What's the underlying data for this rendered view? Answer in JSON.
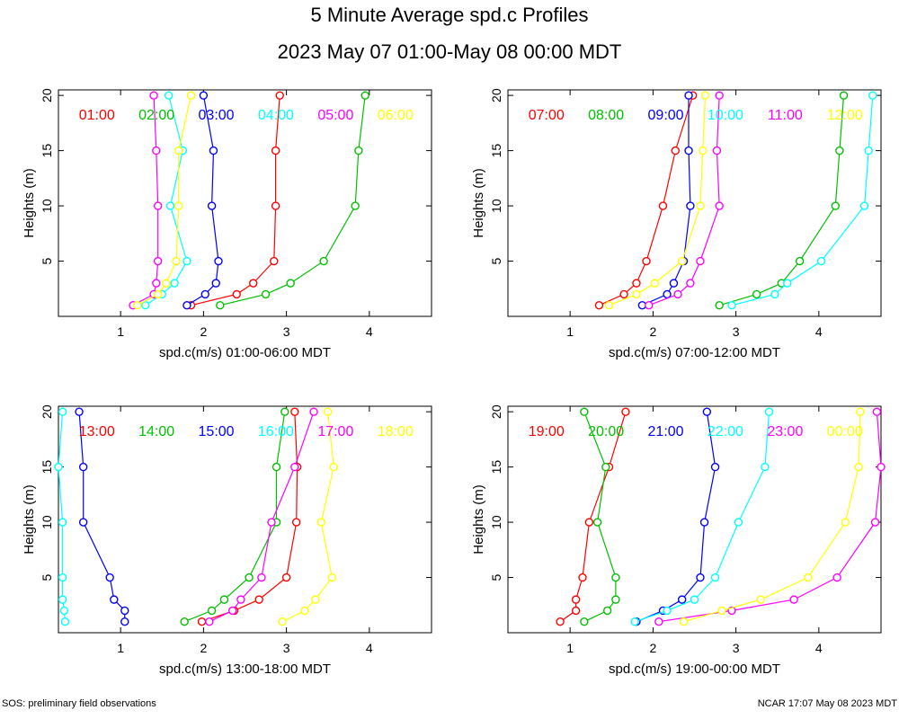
{
  "title": "5 Minute Average spd.c Profiles",
  "subtitle": "2023 May 07 01:00-May 08 00:00 MDT",
  "footer_left": "SOS: preliminary field observations",
  "footer_right": "NCAR 17:07 May 08 2023 MDT",
  "colors": [
    "#ff0000",
    "#00c000",
    "#0000ff",
    "#00ffff",
    "#ff00ff",
    "#ffff00"
  ],
  "chart_data": [
    {
      "type": "line",
      "xlabel": "spd.c(m/s) 01:00-06:00 MDT",
      "ylabel": "Heights (m)",
      "xlim": [
        0.25,
        4.75
      ],
      "ylim": [
        0,
        20.5
      ],
      "xticks": [
        1,
        2,
        3,
        4
      ],
      "yticks": [
        5,
        10,
        15,
        20
      ],
      "heights": [
        1,
        2,
        3,
        5,
        10,
        15,
        20
      ],
      "series": [
        {
          "name": "01:00",
          "values": [
            1.85,
            2.4,
            2.6,
            2.85,
            2.87,
            2.87,
            2.92
          ]
        },
        {
          "name": "02:00",
          "values": [
            2.2,
            2.75,
            3.05,
            3.45,
            3.83,
            3.87,
            3.95
          ]
        },
        {
          "name": "03:00",
          "values": [
            1.8,
            2.02,
            2.15,
            2.18,
            2.1,
            2.12,
            2.0
          ]
        },
        {
          "name": "04:00",
          "values": [
            1.3,
            1.5,
            1.65,
            1.8,
            1.6,
            1.75,
            1.58
          ]
        },
        {
          "name": "05:00",
          "values": [
            1.15,
            1.4,
            1.43,
            1.45,
            1.45,
            1.43,
            1.4
          ]
        },
        {
          "name": "06:00",
          "values": [
            1.2,
            1.45,
            1.55,
            1.67,
            1.7,
            1.7,
            1.85
          ]
        }
      ]
    },
    {
      "type": "line",
      "xlabel": "spd.c(m/s) 07:00-12:00 MDT",
      "ylabel": "Heights (m)",
      "xlim": [
        0.25,
        4.75
      ],
      "ylim": [
        0,
        20.5
      ],
      "xticks": [
        1,
        2,
        3,
        4
      ],
      "yticks": [
        5,
        10,
        15,
        20
      ],
      "heights": [
        1,
        2,
        3,
        5,
        10,
        15,
        20
      ],
      "series": [
        {
          "name": "07:00",
          "values": [
            1.35,
            1.65,
            1.8,
            1.92,
            2.12,
            2.27,
            2.48
          ]
        },
        {
          "name": "08:00",
          "values": [
            2.8,
            3.25,
            3.55,
            3.77,
            4.2,
            4.25,
            4.3
          ]
        },
        {
          "name": "09:00",
          "values": [
            1.87,
            2.17,
            2.25,
            2.37,
            2.45,
            2.43,
            2.43
          ]
        },
        {
          "name": "10:00",
          "values": [
            2.95,
            3.47,
            3.62,
            4.03,
            4.55,
            4.6,
            4.65
          ]
        },
        {
          "name": "11:00",
          "values": [
            1.95,
            2.3,
            2.45,
            2.57,
            2.8,
            2.77,
            2.8
          ]
        },
        {
          "name": "12:00",
          "values": [
            1.47,
            1.8,
            2.02,
            2.35,
            2.57,
            2.6,
            2.63
          ]
        }
      ]
    },
    {
      "type": "line",
      "xlabel": "spd.c(m/s) 13:00-18:00 MDT",
      "ylabel": "Heights (m)",
      "xlim": [
        0.25,
        4.75
      ],
      "ylim": [
        0,
        20.5
      ],
      "xticks": [
        1,
        2,
        3,
        4
      ],
      "yticks": [
        5,
        10,
        15,
        20
      ],
      "heights": [
        1,
        2,
        3,
        5,
        10,
        15,
        20
      ],
      "series": [
        {
          "name": "13:00",
          "values": [
            1.98,
            2.37,
            2.67,
            3.0,
            3.12,
            3.13,
            3.1
          ]
        },
        {
          "name": "14:00",
          "values": [
            1.77,
            2.1,
            2.25,
            2.55,
            2.88,
            2.88,
            2.98
          ]
        },
        {
          "name": "15:00",
          "values": [
            1.05,
            1.05,
            0.92,
            0.87,
            0.55,
            0.55,
            0.5
          ]
        },
        {
          "name": "16:00",
          "values": [
            0.33,
            0.32,
            0.3,
            0.3,
            0.3,
            0.25,
            0.3
          ]
        },
        {
          "name": "17:00",
          "values": [
            2.07,
            2.35,
            2.45,
            2.7,
            2.82,
            3.1,
            3.33
          ]
        },
        {
          "name": "18:00",
          "values": [
            2.95,
            3.22,
            3.35,
            3.55,
            3.42,
            3.57,
            3.5
          ]
        }
      ]
    },
    {
      "type": "line",
      "xlabel": "spd.c(m/s) 19:00-00:00 MDT",
      "ylabel": "Heights (m)",
      "xlim": [
        0.25,
        4.75
      ],
      "ylim": [
        0,
        20.5
      ],
      "xticks": [
        1,
        2,
        3,
        4
      ],
      "yticks": [
        5,
        10,
        15,
        20
      ],
      "heights": [
        1,
        2,
        3,
        5,
        10,
        15,
        20
      ],
      "series": [
        {
          "name": "19:00",
          "values": [
            0.88,
            1.07,
            1.07,
            1.15,
            1.23,
            1.47,
            1.67
          ]
        },
        {
          "name": "20:00",
          "values": [
            1.17,
            1.45,
            1.55,
            1.55,
            1.33,
            1.43,
            1.17
          ]
        },
        {
          "name": "21:00",
          "values": [
            1.8,
            2.12,
            2.35,
            2.57,
            2.62,
            2.75,
            2.65
          ]
        },
        {
          "name": "22:00",
          "values": [
            1.78,
            2.17,
            2.5,
            2.75,
            3.03,
            3.35,
            3.4
          ]
        },
        {
          "name": "23:00",
          "values": [
            2.07,
            2.95,
            3.7,
            4.22,
            4.68,
            4.75,
            4.7
          ]
        },
        {
          "name": "00:00",
          "values": [
            2.37,
            2.83,
            3.3,
            3.87,
            4.32,
            4.48,
            4.5
          ]
        }
      ]
    }
  ]
}
